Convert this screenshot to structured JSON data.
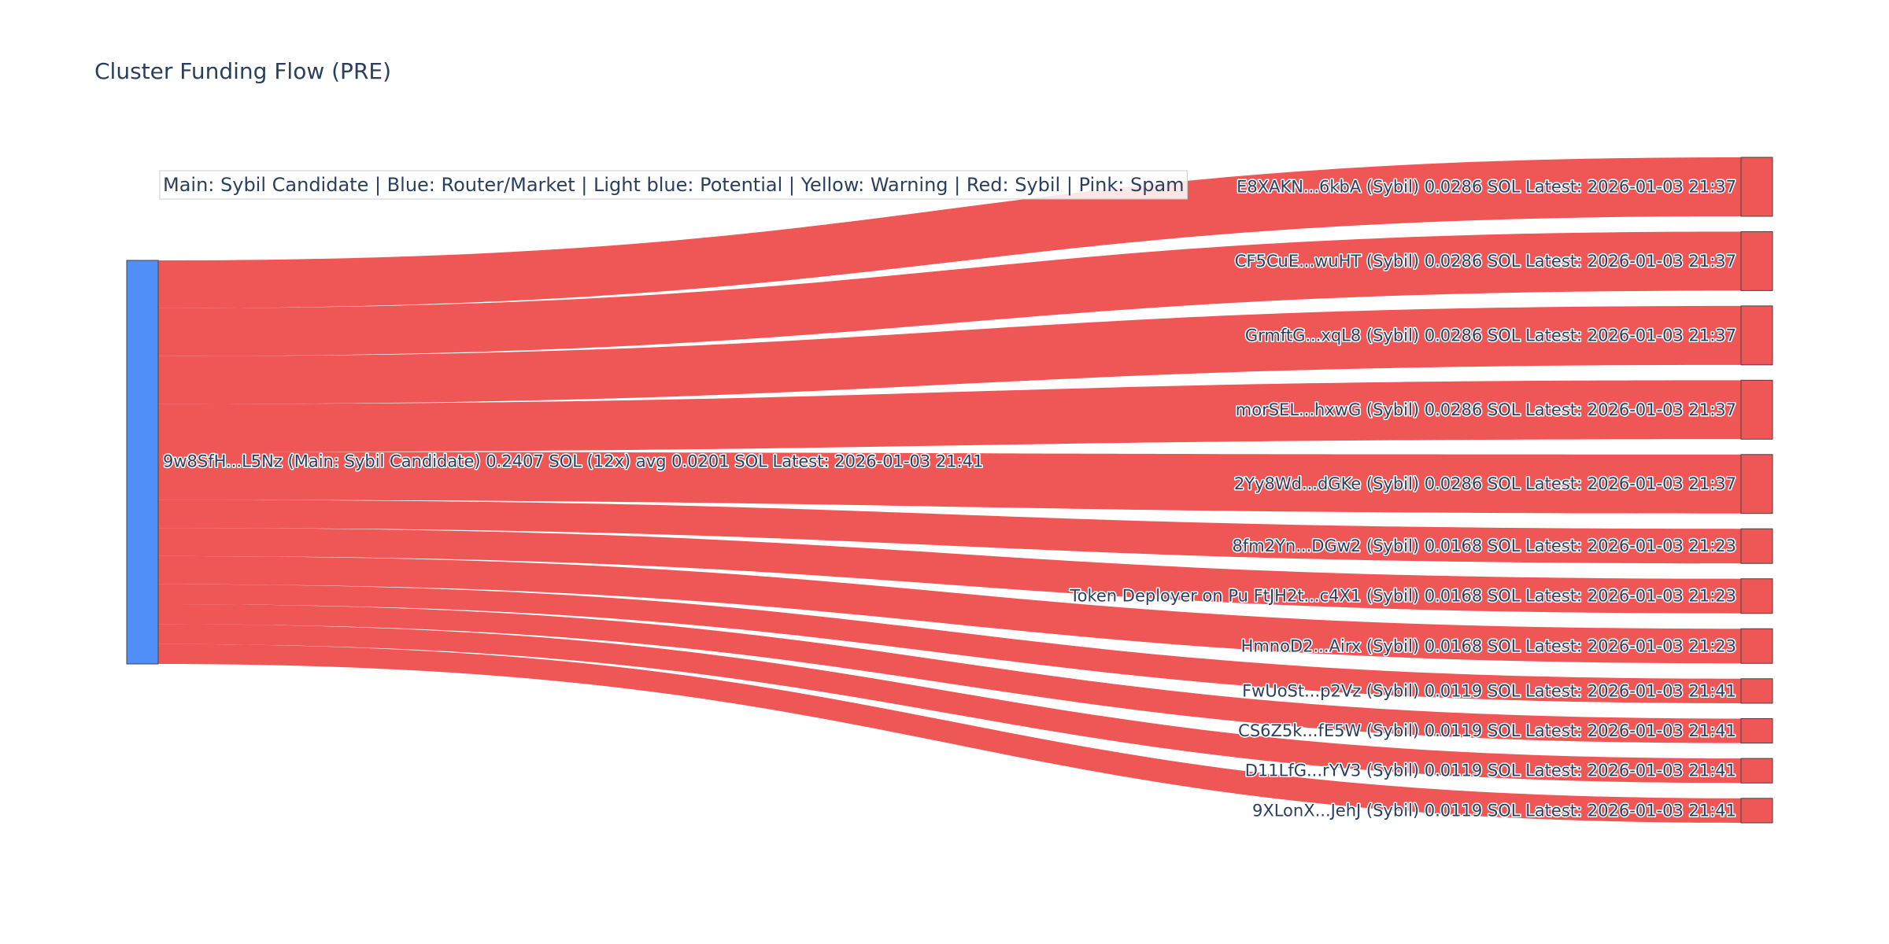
{
  "colors": {
    "source_node": "#4f8ff7",
    "sybil": "#ef5656",
    "node_border": "#444444",
    "text": "#2a3f5f",
    "legend_bg": "#ffffff",
    "legend_border": "#cccccc"
  },
  "chart_data": {
    "type": "sankey",
    "title": "Cluster Funding Flow (PRE)",
    "legend_text": "Main: Sybil Candidate  |  Blue: Router/Market | Light blue: Potential | Yellow: Warning | Red: Sybil | Pink: Spam",
    "source": {
      "label": "9w8SfH...L5Nz (Main: Sybil Candidate) 0.2407 SOL (12x) avg 0.0201 SOL Latest: 2026-01-03 21:41",
      "value": 0.2407
    },
    "targets": [
      {
        "label": "E8XAKN...6kbA (Sybil) 0.0286 SOL Latest: 2026-01-03 21:37",
        "value": 0.0286,
        "category": "sybil"
      },
      {
        "label": "CF5CuE...wuHT (Sybil) 0.0286 SOL Latest: 2026-01-03 21:37",
        "value": 0.0286,
        "category": "sybil"
      },
      {
        "label": "GrmftG...xqL8 (Sybil) 0.0286 SOL Latest: 2026-01-03 21:37",
        "value": 0.0286,
        "category": "sybil"
      },
      {
        "label": "morSEL...hxwG (Sybil) 0.0286 SOL Latest: 2026-01-03 21:37",
        "value": 0.0286,
        "category": "sybil"
      },
      {
        "label": "2Yy8Wd...dGKe (Sybil) 0.0286 SOL Latest: 2026-01-03 21:37",
        "value": 0.0286,
        "category": "sybil"
      },
      {
        "label": "8fm2Yn...DGw2 (Sybil) 0.0168 SOL Latest: 2026-01-03 21:23",
        "value": 0.0168,
        "category": "sybil"
      },
      {
        "label": "Token Deployer on Pu FtJH2t...c4X1 (Sybil) 0.0168 SOL Latest: 2026-01-03 21:23",
        "value": 0.0168,
        "category": "sybil"
      },
      {
        "label": "HmnoD2...Airx (Sybil) 0.0168 SOL Latest: 2026-01-03 21:23",
        "value": 0.0168,
        "category": "sybil"
      },
      {
        "label": "FwUoSt...p2Vz (Sybil) 0.0119 SOL Latest: 2026-01-03 21:41",
        "value": 0.0119,
        "category": "sybil"
      },
      {
        "label": "CS6Z5k...fE5W (Sybil) 0.0119 SOL Latest: 2026-01-03 21:41",
        "value": 0.0119,
        "category": "sybil"
      },
      {
        "label": "D11LfG...rYV3 (Sybil) 0.0119 SOL Latest: 2026-01-03 21:41",
        "value": 0.0119,
        "category": "sybil"
      },
      {
        "label": "9XLonX...JehJ (Sybil) 0.0119 SOL Latest: 2026-01-03 21:41",
        "value": 0.0119,
        "category": "sybil"
      }
    ]
  }
}
